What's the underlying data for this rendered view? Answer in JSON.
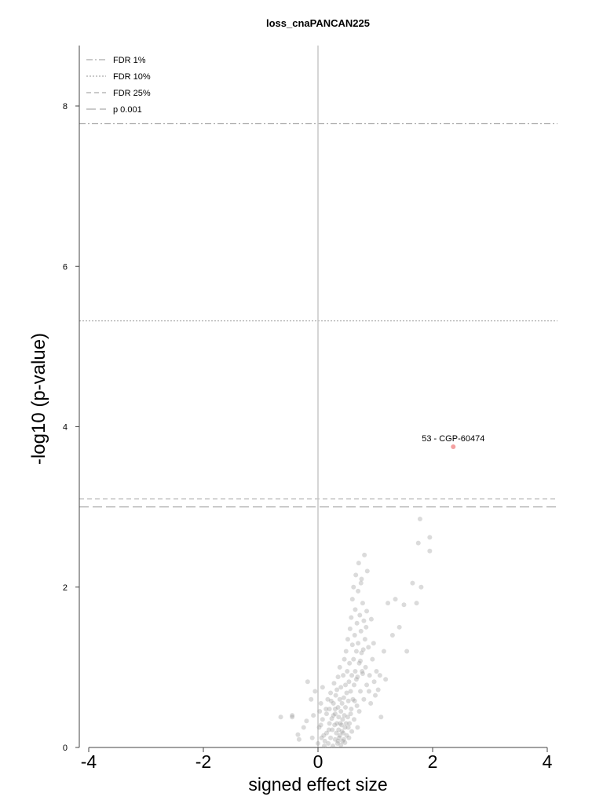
{
  "chart_data": {
    "type": "scatter",
    "title": "loss_cnaPANCAN225",
    "xlabel": "signed effect size",
    "ylabel": "-log10 (p-value)",
    "xlim": [
      -4.2,
      4.2
    ],
    "ylim": [
      0,
      8.8
    ],
    "x_ticks": [
      "-4",
      "-2",
      "0",
      "2",
      "4"
    ],
    "y_ticks": [
      "0",
      "2",
      "4",
      "6",
      "8"
    ],
    "grid": false,
    "legend_position": "top-left",
    "thresholds": [
      {
        "name": "FDR 1%",
        "y": 7.78,
        "style": "dashdot"
      },
      {
        "name": "FDR 10%",
        "y": 5.32,
        "style": "dotted"
      },
      {
        "name": "FDR 25%",
        "y": 3.1,
        "style": "dashed"
      },
      {
        "name": "p 0.001",
        "y": 3.0,
        "style": "longdash"
      }
    ],
    "highlight": {
      "label": "53 - CGP-60474",
      "x": 2.36,
      "y": 3.75,
      "color": "#f4a0a0"
    },
    "vline_x": 0,
    "point_color": "#bbbbbb",
    "series": [
      {
        "points": [
          [
            -0.65,
            0.38
          ],
          [
            -0.45,
            0.38
          ],
          [
            -0.45,
            0.4
          ],
          [
            -0.35,
            0.16
          ],
          [
            -0.33,
            0.1
          ],
          [
            -0.25,
            0.25
          ],
          [
            -0.2,
            0.33
          ],
          [
            -0.18,
            0.82
          ],
          [
            -0.12,
            0.6
          ],
          [
            -0.1,
            0.12
          ],
          [
            -0.08,
            0.4
          ],
          [
            -0.05,
            0.7
          ],
          [
            0.0,
            0.05
          ],
          [
            0.02,
            0.25
          ],
          [
            0.05,
            0.28
          ],
          [
            0.05,
            0.55
          ],
          [
            0.08,
            0.35
          ],
          [
            0.08,
            0.75
          ],
          [
            0.1,
            0.15
          ],
          [
            0.12,
            0.08
          ],
          [
            0.15,
            0.18
          ],
          [
            0.15,
            0.42
          ],
          [
            0.17,
            0.6
          ],
          [
            0.18,
            0.05
          ],
          [
            0.2,
            0.3
          ],
          [
            0.2,
            0.48
          ],
          [
            0.22,
            0.12
          ],
          [
            0.22,
            0.68
          ],
          [
            0.24,
            0.36
          ],
          [
            0.25,
            0.22
          ],
          [
            0.26,
            0.02
          ],
          [
            0.27,
            0.55
          ],
          [
            0.28,
            0.8
          ],
          [
            0.29,
            0.28
          ],
          [
            0.3,
            0.1
          ],
          [
            0.3,
            0.42
          ],
          [
            0.31,
            0.65
          ],
          [
            0.32,
            0.18
          ],
          [
            0.33,
            0.3
          ],
          [
            0.34,
            0.05
          ],
          [
            0.35,
            0.5
          ],
          [
            0.35,
            0.88
          ],
          [
            0.36,
            0.22
          ],
          [
            0.36,
            0.38
          ],
          [
            0.37,
            0.12
          ],
          [
            0.38,
            0.6
          ],
          [
            0.38,
            1.0
          ],
          [
            0.39,
            0.3
          ],
          [
            0.4,
            0.03
          ],
          [
            0.4,
            0.45
          ],
          [
            0.4,
            0.75
          ],
          [
            0.42,
            0.2
          ],
          [
            0.42,
            0.55
          ],
          [
            0.43,
            0.35
          ],
          [
            0.44,
            0.9
          ],
          [
            0.45,
            0.1
          ],
          [
            0.45,
            0.62
          ],
          [
            0.46,
            1.1
          ],
          [
            0.46,
            0.4
          ],
          [
            0.47,
            0.25
          ],
          [
            0.48,
            0.78
          ],
          [
            0.48,
            0.5
          ],
          [
            0.49,
            1.2
          ],
          [
            0.5,
            0.15
          ],
          [
            0.5,
            0.68
          ],
          [
            0.51,
            0.95
          ],
          [
            0.52,
            0.38
          ],
          [
            0.52,
            1.35
          ],
          [
            0.53,
            0.58
          ],
          [
            0.54,
            0.82
          ],
          [
            0.55,
            1.05
          ],
          [
            0.55,
            0.3
          ],
          [
            0.56,
            1.48
          ],
          [
            0.57,
            0.7
          ],
          [
            0.58,
            1.62
          ],
          [
            0.58,
            0.48
          ],
          [
            0.59,
            0.9
          ],
          [
            0.6,
            1.28
          ],
          [
            0.6,
            1.85
          ],
          [
            0.61,
            0.6
          ],
          [
            0.62,
            1.1
          ],
          [
            0.62,
            2.0
          ],
          [
            0.63,
            0.78
          ],
          [
            0.64,
            1.4
          ],
          [
            0.65,
            1.72
          ],
          [
            0.65,
            0.95
          ],
          [
            0.66,
            2.15
          ],
          [
            0.67,
            1.2
          ],
          [
            0.68,
            0.52
          ],
          [
            0.68,
            1.55
          ],
          [
            0.69,
            0.88
          ],
          [
            0.7,
            1.95
          ],
          [
            0.7,
            1.3
          ],
          [
            0.71,
            2.3
          ],
          [
            0.72,
            1.05
          ],
          [
            0.73,
            1.65
          ],
          [
            0.74,
            0.7
          ],
          [
            0.75,
            1.45
          ],
          [
            0.75,
            2.05
          ],
          [
            0.76,
            1.18
          ],
          [
            0.78,
            1.8
          ],
          [
            0.78,
            0.92
          ],
          [
            0.8,
            1.58
          ],
          [
            0.8,
            0.6
          ],
          [
            0.82,
            1.35
          ],
          [
            0.83,
            1.0
          ],
          [
            0.85,
            0.78
          ],
          [
            0.85,
            1.7
          ],
          [
            0.88,
            1.25
          ],
          [
            0.9,
            0.9
          ],
          [
            0.92,
            0.55
          ],
          [
            0.95,
            1.1
          ],
          [
            0.98,
            0.82
          ],
          [
            1.0,
            0.65
          ],
          [
            1.02,
            0.95
          ],
          [
            1.05,
            0.72
          ],
          [
            1.08,
            0.9
          ],
          [
            1.1,
            0.38
          ],
          [
            1.15,
            1.2
          ],
          [
            1.18,
            0.85
          ],
          [
            1.22,
            1.8
          ],
          [
            1.3,
            1.4
          ],
          [
            1.35,
            1.85
          ],
          [
            1.42,
            1.5
          ],
          [
            1.5,
            1.78
          ],
          [
            1.55,
            1.2
          ],
          [
            1.65,
            2.05
          ],
          [
            1.72,
            1.8
          ],
          [
            1.75,
            2.55
          ],
          [
            1.78,
            2.85
          ],
          [
            1.8,
            2.0
          ],
          [
            1.95,
            2.45
          ],
          [
            1.95,
            2.62
          ],
          [
            0.3,
            0.48
          ],
          [
            0.33,
            0.72
          ],
          [
            0.41,
            0.28
          ],
          [
            0.44,
            0.18
          ],
          [
            0.47,
            0.06
          ],
          [
            0.53,
            0.25
          ],
          [
            0.57,
            0.42
          ],
          [
            0.63,
            0.35
          ],
          [
            0.67,
            0.85
          ],
          [
            0.72,
            0.45
          ],
          [
            0.77,
            0.95
          ],
          [
            0.35,
            0.08
          ],
          [
            0.27,
            0.4
          ],
          [
            0.23,
            0.58
          ],
          [
            0.19,
            0.22
          ],
          [
            0.14,
            0.48
          ],
          [
            0.11,
            0.02
          ],
          [
            0.06,
            0.12
          ],
          [
            0.03,
            0.45
          ],
          [
            0.38,
            0.15
          ],
          [
            0.43,
            0.08
          ],
          [
            0.49,
            0.3
          ],
          [
            0.54,
            0.12
          ],
          [
            0.59,
            0.2
          ],
          [
            0.64,
            0.58
          ],
          [
            0.69,
            0.25
          ],
          [
            0.74,
            1.08
          ],
          [
            0.79,
            1.22
          ],
          [
            0.84,
            1.5
          ],
          [
            0.89,
            0.7
          ],
          [
            0.93,
            1.6
          ],
          [
            0.97,
            1.3
          ],
          [
            0.86,
            2.2
          ],
          [
            0.81,
            2.4
          ],
          [
            0.76,
            2.1
          ]
        ]
      }
    ]
  }
}
